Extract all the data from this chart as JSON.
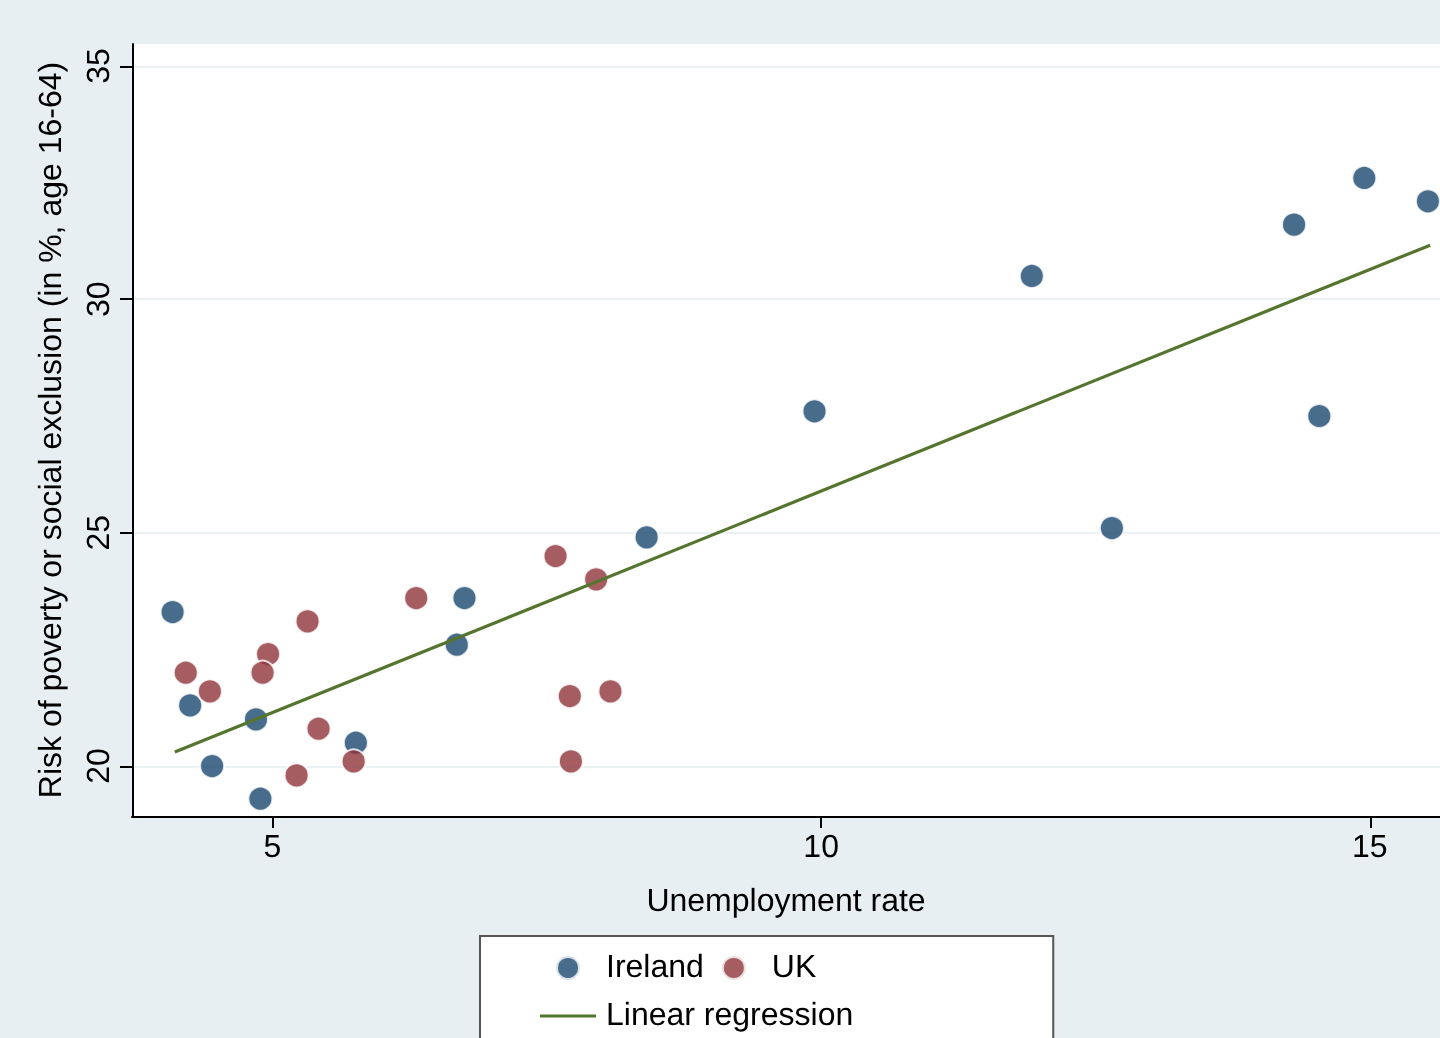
{
  "chart_data": {
    "type": "scatter",
    "xlabel": "Unemployment rate",
    "ylabel": "Risk of poverty or social exclusion (in %, age 16-64)",
    "series": [
      {
        "name": "Ireland",
        "color": "#1a476f",
        "x": [
          4.09,
          4.25,
          4.45,
          4.85,
          4.89,
          5.76,
          6.75,
          6.68,
          8.41,
          9.94,
          11.92,
          14.31,
          14.54,
          12.65,
          14.95,
          15.53
        ],
        "values": [
          23.3,
          21.3,
          20.0,
          21.0,
          19.3,
          20.5,
          23.6,
          22.6,
          24.9,
          27.6,
          30.5,
          31.6,
          27.5,
          25.1,
          32.6,
          32.1
        ]
      },
      {
        "name": "UK",
        "color": "#90353b",
        "x": [
          4.21,
          4.43,
          4.96,
          4.91,
          5.32,
          5.42,
          5.22,
          5.74,
          6.31,
          7.58,
          7.95,
          7.71,
          8.08,
          7.72
        ],
        "values": [
          22.0,
          21.6,
          22.4,
          22.0,
          23.1,
          20.8,
          19.8,
          20.1,
          23.6,
          24.5,
          24.0,
          21.5,
          21.6,
          20.1
        ]
      },
      {
        "name": "Linear regression",
        "type": "line",
        "color": "#55752f",
        "marker": "none",
        "x": [
          4.11,
          15.55
        ],
        "values": [
          20.3,
          31.16
        ]
      }
    ],
    "xlim": [
      3.72,
      15.64
    ],
    "ylim": [
      18.93,
      35.47
    ],
    "xticks": [
      5,
      10,
      15
    ],
    "yticks": [
      20,
      25,
      30,
      35
    ],
    "marker": "circle",
    "grid": "y",
    "legend": "bottom"
  }
}
